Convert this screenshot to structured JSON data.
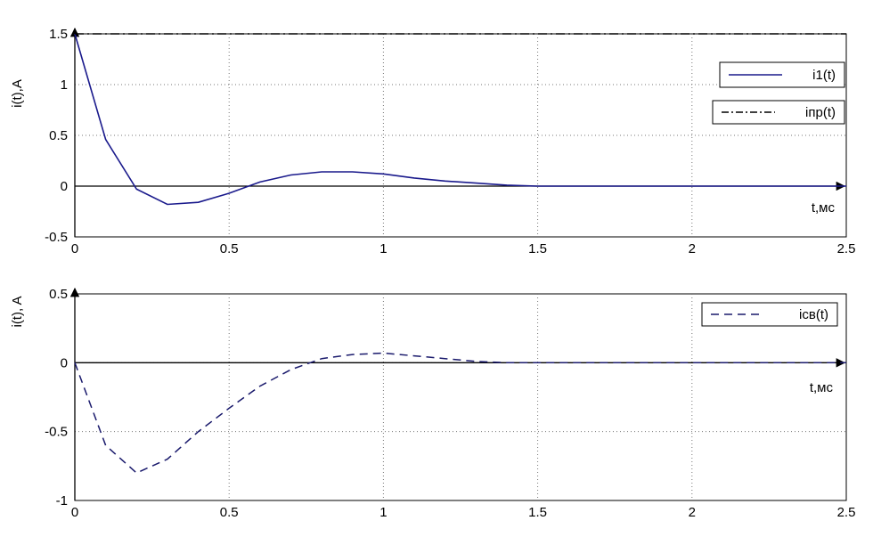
{
  "chart_data": [
    {
      "type": "line",
      "ylabel": "i(t),A",
      "xlabel": "t,мс",
      "xlim": [
        0,
        2.5
      ],
      "ylim": [
        -0.5,
        1.5
      ],
      "grid": true,
      "x_ticks": [
        "0",
        "0.5",
        "1",
        "1.5",
        "2",
        "2.5"
      ],
      "y_ticks": [
        "-0.5",
        "0",
        "0.5",
        "1",
        "1.5"
      ],
      "legend_placement": "right",
      "series": [
        {
          "name": "i1(t)",
          "style": "solid",
          "color": "#1a1a8c",
          "x": [
            0,
            0.1,
            0.2,
            0.3,
            0.4,
            0.5,
            0.6,
            0.7,
            0.8,
            0.9,
            1.0,
            1.1,
            1.2,
            1.3,
            1.4,
            1.5,
            1.6,
            1.8,
            2.0,
            2.2,
            2.5
          ],
          "y": [
            1.5,
            0.46,
            -0.03,
            -0.18,
            -0.16,
            -0.07,
            0.04,
            0.11,
            0.14,
            0.14,
            0.12,
            0.08,
            0.05,
            0.03,
            0.01,
            0.0,
            0.0,
            0.0,
            0.0,
            0.0,
            0.0
          ]
        },
        {
          "name": "iпр(t)",
          "style": "dashdot",
          "color": "#000000",
          "x": [
            0,
            2.5
          ],
          "y": [
            1.5,
            1.5
          ]
        }
      ]
    },
    {
      "type": "line",
      "ylabel": "i(t), A",
      "xlabel": "t,мс",
      "xlim": [
        0,
        2.5
      ],
      "ylim": [
        -1,
        0.5
      ],
      "grid": true,
      "x_ticks": [
        "0",
        "0.5",
        "1",
        "1.5",
        "2",
        "2.5"
      ],
      "y_ticks": [
        "-1",
        "-0.5",
        "0",
        "0.5"
      ],
      "legend_placement": "top-right",
      "series": [
        {
          "name": "iсв(t)",
          "style": "dashed",
          "color": "#1a1a6c",
          "x": [
            0,
            0.1,
            0.2,
            0.3,
            0.4,
            0.5,
            0.6,
            0.7,
            0.8,
            0.9,
            1.0,
            1.1,
            1.2,
            1.3,
            1.4,
            1.5,
            1.6,
            1.8,
            2.0,
            2.2,
            2.5
          ],
          "y": [
            0,
            -0.6,
            -0.8,
            -0.7,
            -0.5,
            -0.33,
            -0.17,
            -0.05,
            0.03,
            0.06,
            0.07,
            0.05,
            0.03,
            0.01,
            0.0,
            0.0,
            0.0,
            0.0,
            0.0,
            0.0,
            0.0
          ]
        }
      ]
    }
  ]
}
